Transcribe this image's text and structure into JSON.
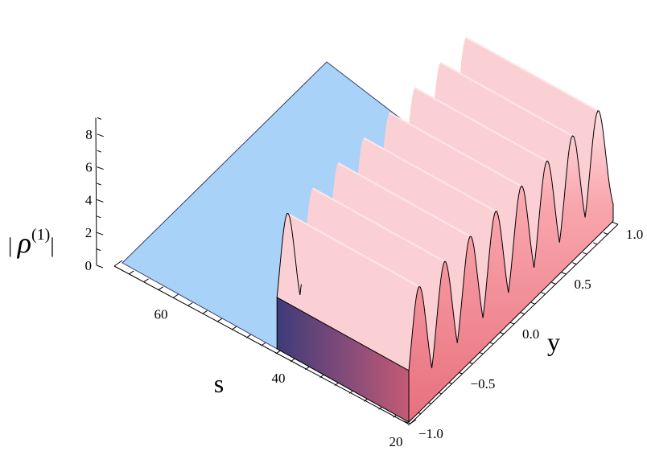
{
  "chart_data": {
    "type": "surface3d",
    "title": "",
    "zlabel": "| ρ(1) |",
    "zlabel_symbol": "ρ",
    "zlabel_superscript": "(1)",
    "zlabel_bar": "|",
    "xlabel": "s",
    "ylabel": "y",
    "s_ticks": [
      "60",
      "40",
      "20"
    ],
    "y_ticks": [
      "−1.0",
      "−0.5",
      "0.0",
      "0.5",
      "1.0"
    ],
    "z_ticks": [
      "0",
      "2",
      "4",
      "6",
      "8"
    ],
    "s_range": [
      20,
      70
    ],
    "y_range": [
      -1.0,
      1.0
    ],
    "z_range": [
      0,
      9
    ],
    "peaks_y": [
      -0.9,
      -0.65,
      -0.4,
      -0.15,
      0.1,
      0.35,
      0.6,
      0.85
    ],
    "peak_height": 8,
    "surface_s_range": [
      20,
      43
    ],
    "flat_s_range": [
      43,
      70
    ],
    "colors": {
      "wave": "#f68a92",
      "wave_light": "#fbc3c7",
      "wave_dark": "#c9566d",
      "flat": "#a8d2f8",
      "flat_edge": "#4a4a8a"
    }
  }
}
